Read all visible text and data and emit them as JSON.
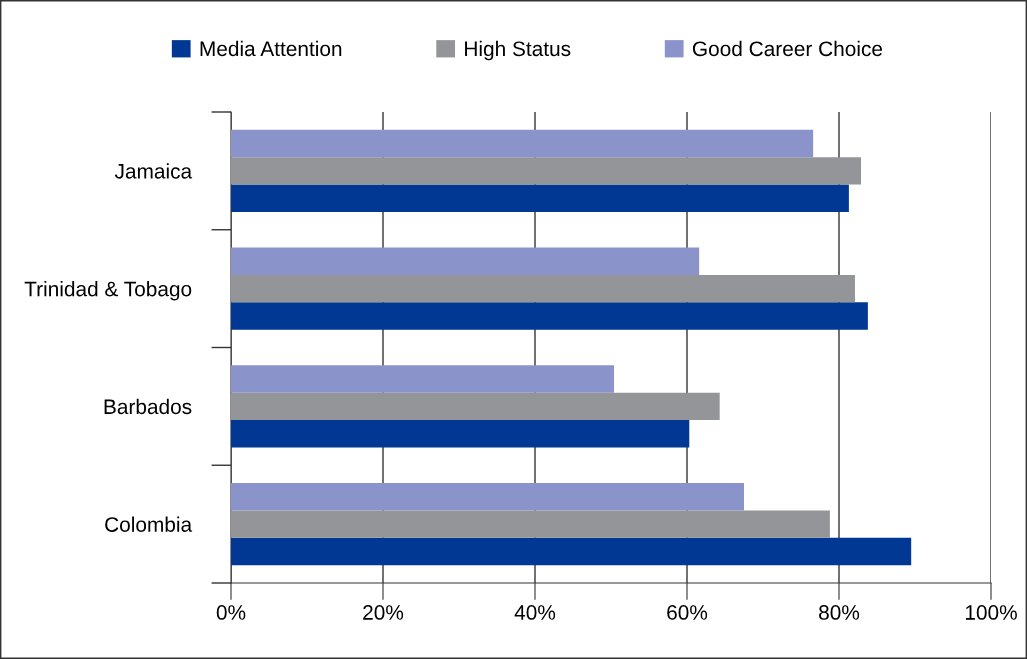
{
  "chart_data": {
    "type": "bar",
    "orientation": "horizontal",
    "categories": [
      "Jamaica",
      "Trinidad & Tobago",
      "Barbados",
      "Colombia"
    ],
    "series": [
      {
        "name": "Media Attention",
        "color": "#003893",
        "values": [
          81.3,
          83.8,
          60.3,
          89.5
        ]
      },
      {
        "name": "High Status",
        "color": "#939598",
        "values": [
          82.9,
          82.1,
          64.3,
          78.8
        ]
      },
      {
        "name": "Good Career Choice",
        "color": "#8b93cb",
        "values": [
          76.6,
          61.6,
          50.4,
          67.5
        ]
      }
    ],
    "xlim": [
      0,
      100
    ],
    "xticks": [
      {
        "value": 0,
        "label": "0%"
      },
      {
        "value": 20,
        "label": "20%"
      },
      {
        "value": 40,
        "label": "40%"
      },
      {
        "value": 60,
        "label": "60%"
      },
      {
        "value": 80,
        "label": "80%"
      },
      {
        "value": 100,
        "label": "100%"
      }
    ],
    "grid": "x",
    "legend": "top"
  }
}
